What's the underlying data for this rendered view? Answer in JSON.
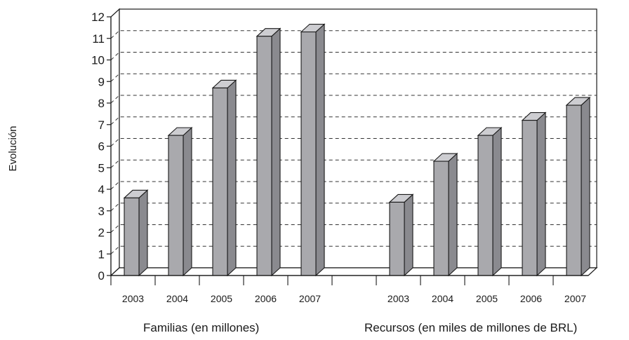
{
  "chart_data": {
    "type": "bar",
    "ylabel": "Evolución",
    "ylim": [
      0,
      12
    ],
    "yticks": [
      0,
      1,
      2,
      3,
      4,
      5,
      6,
      7,
      8,
      9,
      10,
      11,
      12
    ],
    "grid": true,
    "groups": [
      {
        "label": "Familias (en millones)",
        "categories": [
          "2003",
          "2004",
          "2005",
          "2006",
          "2007"
        ],
        "values": [
          3.6,
          6.5,
          8.7,
          11.1,
          11.3
        ]
      },
      {
        "label": "Recursos (en miles de millones de BRL)",
        "categories": [
          "2003",
          "2004",
          "2005",
          "2006",
          "2007"
        ],
        "values": [
          3.4,
          5.3,
          6.5,
          7.2,
          7.9
        ]
      }
    ],
    "colors": {
      "bar_front": "#a9a9ad",
      "bar_side": "#8a8a8f",
      "bar_top": "#cdcdd1",
      "stroke": "#1a1a1a"
    }
  }
}
